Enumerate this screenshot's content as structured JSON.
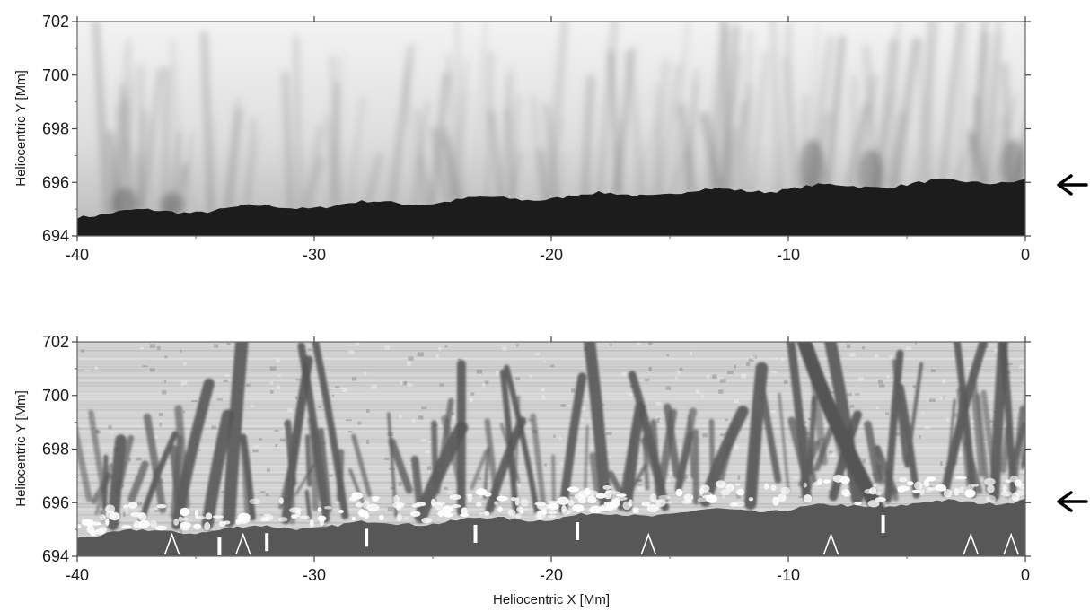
{
  "panels": [
    {
      "id": "top",
      "ylabel": "Heliocentric Y [Mm]",
      "xlabel": "",
      "y_ticks": [
        "694",
        "696",
        "698",
        "700",
        "702"
      ],
      "x_ticks": [
        "-40",
        "-30",
        "-20",
        "-10",
        "0"
      ],
      "style": "intensity",
      "arrow_at_y": 696
    },
    {
      "id": "bottom",
      "ylabel": "Heliocentric Y [Mm]",
      "xlabel": "Heliocentric X [Mm]",
      "y_ticks": [
        "694",
        "696",
        "698",
        "700",
        "702"
      ],
      "x_ticks": [
        "-40",
        "-30",
        "-20",
        "-10",
        "0"
      ],
      "style": "filtered",
      "arrow_at_y": 696,
      "bar_markers_x": [
        -34,
        -32,
        -27.8,
        -23.2,
        -18.9,
        -6
      ],
      "chevron_markers_x": [
        -36,
        -33,
        -15.9,
        -8.2,
        -2.3,
        -0.6
      ]
    }
  ],
  "axes": {
    "xlim": [
      -40,
      0
    ],
    "ylim": [
      694,
      702
    ]
  },
  "colors": {
    "limb_top": "#1c1c1c",
    "limb_bottom": "#575757",
    "frame": "#666666",
    "arrow": "#000000"
  }
}
